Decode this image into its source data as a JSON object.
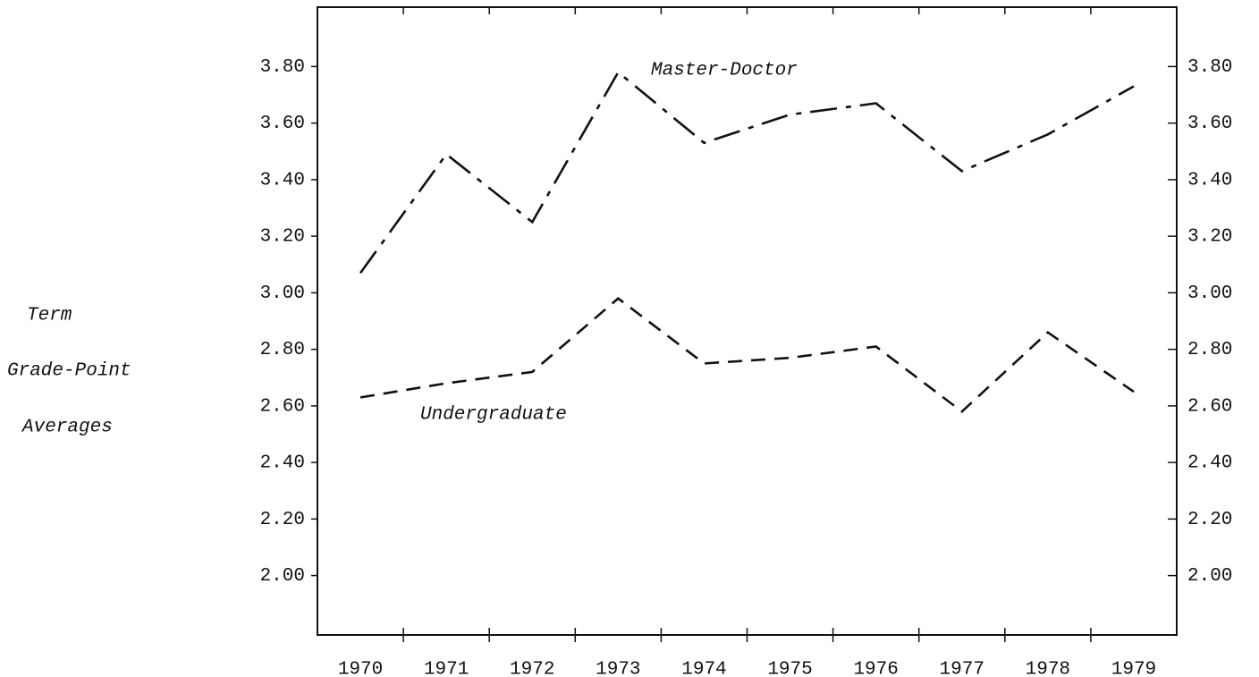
{
  "chart_data": {
    "type": "line",
    "ylabel": [
      "Term",
      "Grade-Point",
      "Averages"
    ],
    "categories": [
      "1970",
      "1971",
      "1972",
      "1973",
      "1974",
      "1975",
      "1976",
      "1977",
      "1978",
      "1979"
    ],
    "series": [
      {
        "name": "Master-Doctor",
        "color": "#111111",
        "dash": "dashdot",
        "values": [
          3.07,
          3.49,
          3.25,
          3.78,
          3.53,
          3.63,
          3.67,
          3.43,
          3.56,
          3.73
        ]
      },
      {
        "name": "Undergraduate",
        "color": "#111111",
        "dash": "dashed",
        "values": [
          2.63,
          2.68,
          2.72,
          2.98,
          2.75,
          2.77,
          2.81,
          2.58,
          2.86,
          2.65
        ]
      }
    ],
    "ylim": [
      1.79,
      4.01
    ],
    "yticks": [
      {
        "value": 2.0,
        "label": "2.00"
      },
      {
        "value": 2.2,
        "label": "2.20"
      },
      {
        "value": 2.4,
        "label": "2.40"
      },
      {
        "value": 2.6,
        "label": "2.60"
      },
      {
        "value": 2.8,
        "label": "2.80"
      },
      {
        "value": 3.0,
        "label": "3.00"
      },
      {
        "value": 3.2,
        "label": "3.20"
      },
      {
        "value": 3.4,
        "label": "3.40"
      },
      {
        "value": 3.6,
        "label": "3.60"
      },
      {
        "value": 3.8,
        "label": "3.80"
      }
    ],
    "y2lim": [
      1.79,
      4.01
    ],
    "y2ticks": [
      {
        "value": 2.0,
        "label": "2.00"
      },
      {
        "value": 2.2,
        "label": "2.20"
      },
      {
        "value": 2.4,
        "label": "2.40"
      },
      {
        "value": 2.6,
        "label": "2.60"
      },
      {
        "value": 2.8,
        "label": "2.80"
      },
      {
        "value": 3.0,
        "label": "3.00"
      },
      {
        "value": 3.2,
        "label": "3.20"
      },
      {
        "value": 3.4,
        "label": "3.40"
      },
      {
        "value": 3.6,
        "label": "3.60"
      },
      {
        "value": 3.8,
        "label": "3.80"
      }
    ],
    "grid": false
  }
}
